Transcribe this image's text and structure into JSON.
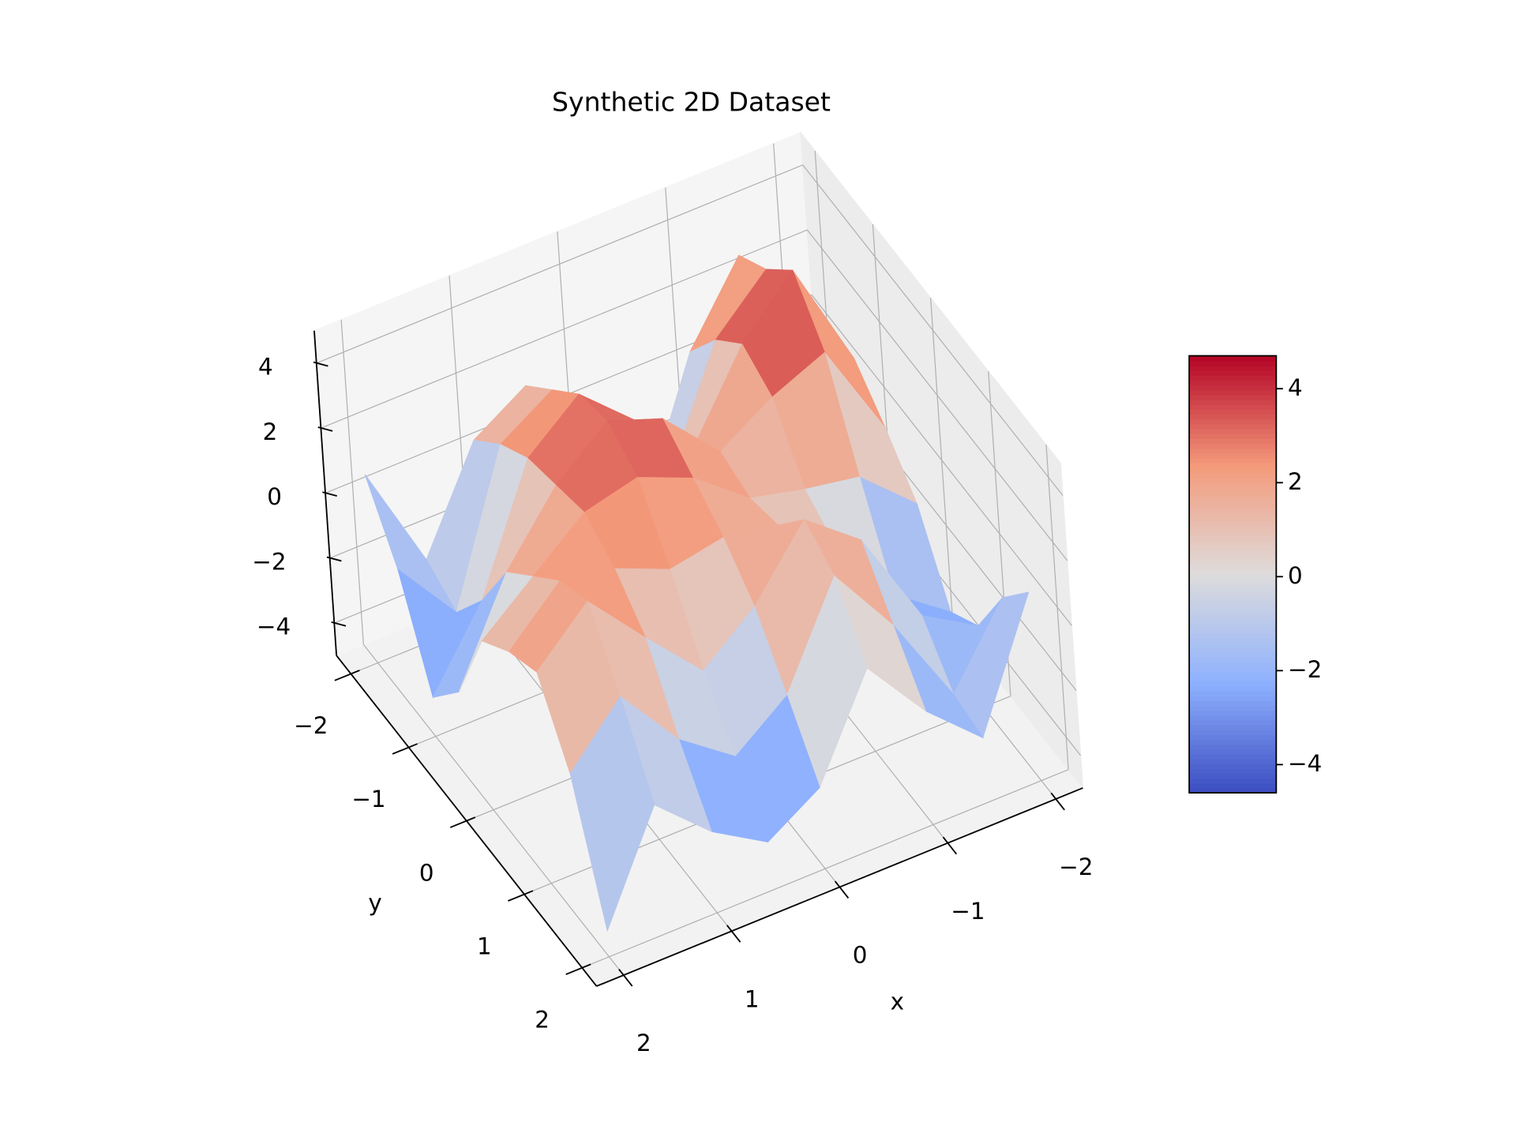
{
  "chart_data": {
    "type": "surface",
    "title": "Synthetic 2D Dataset",
    "xlabel": "x",
    "ylabel": "y",
    "x": [
      -2,
      -1.5,
      -1,
      -0.5,
      0,
      0.5,
      1,
      1.5,
      2
    ],
    "y": [
      -2,
      -1.5,
      -1,
      -0.5,
      0,
      0.5,
      1,
      1.5,
      2
    ],
    "z": [
      [
        -1.5,
        2.8,
        0.5,
        -3.5,
        -1,
        1.5,
        0.5,
        -2.5,
        0.8
      ],
      [
        0.5,
        3.5,
        2,
        -1.5,
        0.5,
        2.5,
        1.5,
        -3,
        -1
      ],
      [
        1.2,
        4.6,
        3,
        0.5,
        2,
        3.5,
        2.2,
        -1.5,
        -3.8
      ],
      [
        0.2,
        3.2,
        2.5,
        1.5,
        3.2,
        3.8,
        2.5,
        0.5,
        -2.5
      ],
      [
        -1,
        0.5,
        0.8,
        1.2,
        2.5,
        3.2,
        2.8,
        1.5,
        0.2
      ],
      [
        -3.2,
        -2,
        0.2,
        1.5,
        1.8,
        1.5,
        2.2,
        2.5,
        1
      ],
      [
        -2.5,
        -1.5,
        1.5,
        2.8,
        0.8,
        -0.5,
        1.2,
        3,
        1.5
      ],
      [
        -0.5,
        -2.8,
        0,
        2.2,
        -0.8,
        -2,
        -0.8,
        1.2,
        -0.5
      ],
      [
        0.8,
        -3,
        -1.5,
        0.5,
        -2.5,
        -3.5,
        -2.5,
        -1,
        -4.2
      ]
    ],
    "xlim": [
      -2.25,
      2.25
    ],
    "ylim": [
      -2.25,
      2.25
    ],
    "zlim": [
      -5,
      5
    ],
    "xticks": [
      {
        "value": -2,
        "label": "−2"
      },
      {
        "value": -1,
        "label": "−1"
      },
      0,
      1,
      2
    ],
    "yticks": [
      {
        "value": -2,
        "label": "−2"
      },
      {
        "value": -1,
        "label": "−1"
      },
      0,
      1,
      2
    ],
    "zticks": [
      {
        "value": -4,
        "label": "−4"
      },
      {
        "value": -2,
        "label": "−2"
      },
      0,
      2,
      4
    ],
    "colormap": "coolwarm",
    "colorbar": {
      "lim": [
        -4.6,
        4.7
      ],
      "ticks": [
        {
          "value": -4,
          "label": "−4"
        },
        {
          "value": -2,
          "label": "−2"
        },
        0,
        2,
        4
      ]
    },
    "grid": true
  }
}
